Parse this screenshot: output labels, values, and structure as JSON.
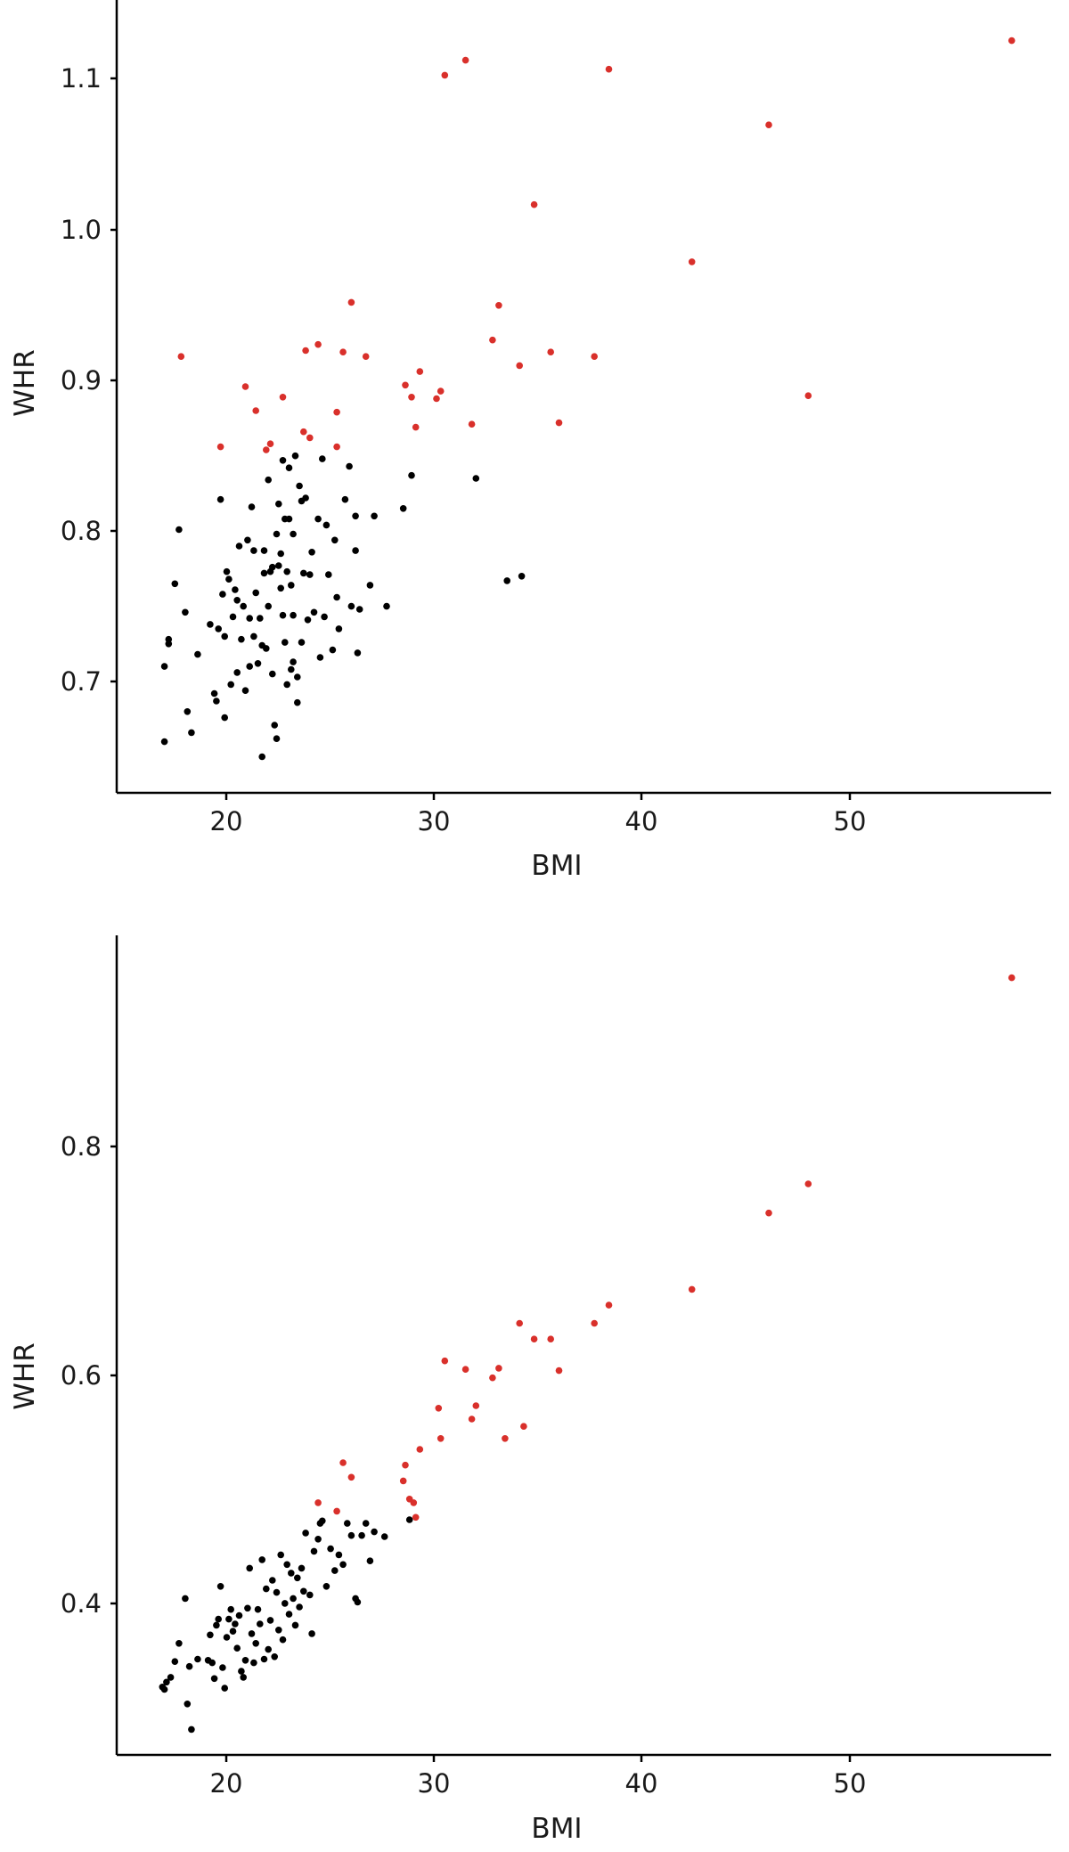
{
  "colors": {
    "normal_point": "#000000",
    "highlight_point": "#d9302b",
    "axis": "#000000",
    "background": "#ffffff"
  },
  "chart_data": [
    {
      "type": "scatter",
      "title": "",
      "xlabel": "BMI",
      "ylabel": "WHR",
      "xlim": [
        14.5,
        59.5
      ],
      "ylim": [
        0.628,
        1.155
      ],
      "xticks": [
        20,
        30,
        40,
        50
      ],
      "yticks": [
        0.7,
        0.8,
        0.9,
        1.0,
        1.1
      ],
      "xtick_labels": [
        "20",
        "30",
        "40",
        "50"
      ],
      "ytick_labels": [
        "0.7",
        "0.8",
        "0.9",
        "1.0",
        "1.1"
      ],
      "legend": "none",
      "grid": false,
      "series": [
        {
          "color": "#000000",
          "points": [
            [
              16.8,
              0.662
            ],
            [
              16.8,
              0.712
            ],
            [
              17.0,
              0.727
            ],
            [
              17.0,
              0.73
            ],
            [
              17.3,
              0.767
            ],
            [
              17.5,
              0.803
            ],
            [
              17.8,
              0.748
            ],
            [
              17.9,
              0.682
            ],
            [
              18.1,
              0.668
            ],
            [
              18.4,
              0.72
            ],
            [
              19.0,
              0.74
            ],
            [
              19.2,
              0.694
            ],
            [
              19.3,
              0.689
            ],
            [
              19.4,
              0.737
            ],
            [
              19.5,
              0.823
            ],
            [
              19.6,
              0.76
            ],
            [
              19.7,
              0.678
            ],
            [
              19.7,
              0.732
            ],
            [
              19.8,
              0.775
            ],
            [
              19.9,
              0.77
            ],
            [
              20.0,
              0.7
            ],
            [
              20.1,
              0.745
            ],
            [
              20.2,
              0.763
            ],
            [
              20.3,
              0.756
            ],
            [
              20.3,
              0.708
            ],
            [
              20.4,
              0.792
            ],
            [
              20.5,
              0.73
            ],
            [
              20.6,
              0.752
            ],
            [
              20.7,
              0.696
            ],
            [
              20.8,
              0.796
            ],
            [
              20.9,
              0.744
            ],
            [
              20.9,
              0.712
            ],
            [
              21.0,
              0.818
            ],
            [
              21.1,
              0.789
            ],
            [
              21.1,
              0.732
            ],
            [
              21.2,
              0.761
            ],
            [
              21.3,
              0.714
            ],
            [
              21.4,
              0.744
            ],
            [
              21.5,
              0.726
            ],
            [
              21.5,
              0.652
            ],
            [
              21.6,
              0.789
            ],
            [
              21.6,
              0.774
            ],
            [
              21.7,
              0.724
            ],
            [
              21.8,
              0.836
            ],
            [
              21.8,
              0.752
            ],
            [
              21.9,
              0.775
            ],
            [
              22.0,
              0.778
            ],
            [
              22.0,
              0.707
            ],
            [
              22.1,
              0.673
            ],
            [
              22.2,
              0.8
            ],
            [
              22.2,
              0.664
            ],
            [
              22.3,
              0.779
            ],
            [
              22.3,
              0.82
            ],
            [
              22.4,
              0.764
            ],
            [
              22.4,
              0.787
            ],
            [
              22.5,
              0.849
            ],
            [
              22.5,
              0.746
            ],
            [
              22.6,
              0.728
            ],
            [
              22.6,
              0.81
            ],
            [
              22.7,
              0.775
            ],
            [
              22.7,
              0.7
            ],
            [
              22.8,
              0.844
            ],
            [
              22.8,
              0.81
            ],
            [
              22.9,
              0.766
            ],
            [
              22.9,
              0.71
            ],
            [
              23.0,
              0.8
            ],
            [
              23.0,
              0.746
            ],
            [
              23.0,
              0.715
            ],
            [
              23.1,
              0.852
            ],
            [
              23.2,
              0.688
            ],
            [
              23.2,
              0.705
            ],
            [
              23.3,
              0.832
            ],
            [
              23.4,
              0.822
            ],
            [
              23.4,
              0.728
            ],
            [
              23.5,
              0.774
            ],
            [
              23.6,
              0.824
            ],
            [
              23.7,
              0.743
            ],
            [
              23.8,
              0.773
            ],
            [
              23.9,
              0.788
            ],
            [
              24.0,
              0.748
            ],
            [
              24.2,
              0.81
            ],
            [
              24.3,
              0.718
            ],
            [
              24.4,
              0.85
            ],
            [
              24.5,
              0.745
            ],
            [
              24.6,
              0.806
            ],
            [
              24.7,
              0.773
            ],
            [
              24.9,
              0.723
            ],
            [
              25.0,
              0.796
            ],
            [
              25.1,
              0.758
            ],
            [
              25.2,
              0.737
            ],
            [
              25.5,
              0.823
            ],
            [
              25.7,
              0.845
            ],
            [
              25.8,
              0.752
            ],
            [
              26.0,
              0.812
            ],
            [
              26.0,
              0.789
            ],
            [
              26.1,
              0.721
            ],
            [
              26.2,
              0.75
            ],
            [
              26.7,
              0.766
            ],
            [
              26.9,
              0.812
            ],
            [
              27.5,
              0.752
            ],
            [
              28.3,
              0.817
            ],
            [
              28.7,
              0.839
            ],
            [
              31.8,
              0.837
            ],
            [
              33.3,
              0.769
            ],
            [
              34.0,
              0.772
            ]
          ]
        },
        {
          "color": "#d9302b",
          "points": [
            [
              17.6,
              0.918
            ],
            [
              19.5,
              0.858
            ],
            [
              20.7,
              0.898
            ],
            [
              21.2,
              0.882
            ],
            [
              21.7,
              0.856
            ],
            [
              21.9,
              0.86
            ],
            [
              22.5,
              0.891
            ],
            [
              23.5,
              0.868
            ],
            [
              23.6,
              0.922
            ],
            [
              23.8,
              0.864
            ],
            [
              24.2,
              0.926
            ],
            [
              25.1,
              0.881
            ],
            [
              25.1,
              0.858
            ],
            [
              25.4,
              0.921
            ],
            [
              25.8,
              0.954
            ],
            [
              26.5,
              0.918
            ],
            [
              28.4,
              0.899
            ],
            [
              28.7,
              0.891
            ],
            [
              28.9,
              0.871
            ],
            [
              29.1,
              0.908
            ],
            [
              29.9,
              0.89
            ],
            [
              30.1,
              0.895
            ],
            [
              30.3,
              1.105
            ],
            [
              31.3,
              1.115
            ],
            [
              31.6,
              0.873
            ],
            [
              32.6,
              0.929
            ],
            [
              32.9,
              0.952
            ],
            [
              33.9,
              0.912
            ],
            [
              34.6,
              1.019
            ],
            [
              35.4,
              0.921
            ],
            [
              35.8,
              0.874
            ],
            [
              37.5,
              0.918
            ],
            [
              38.2,
              1.109
            ],
            [
              42.2,
              0.981
            ],
            [
              45.9,
              1.072
            ],
            [
              47.8,
              0.892
            ],
            [
              57.6,
              1.128
            ]
          ]
        }
      ]
    },
    {
      "type": "scatter",
      "title": "",
      "xlabel": "BMI",
      "ylabel": "WHR",
      "xlim": [
        14.5,
        59.5
      ],
      "ylim": [
        0.306,
        0.982
      ],
      "xticks": [
        20,
        30,
        40,
        50
      ],
      "yticks": [
        0.4,
        0.6,
        0.8
      ],
      "xtick_labels": [
        "20",
        "30",
        "40",
        "50"
      ],
      "ytick_labels": [
        "0.4",
        "0.6",
        "0.8"
      ],
      "legend": "none",
      "grid": false,
      "series": [
        {
          "color": "#000000",
          "points": [
            [
              16.7,
              0.362
            ],
            [
              16.8,
              0.36
            ],
            [
              16.9,
              0.366
            ],
            [
              17.1,
              0.37
            ],
            [
              17.3,
              0.383
            ],
            [
              17.5,
              0.398
            ],
            [
              17.8,
              0.435
            ],
            [
              17.9,
              0.348
            ],
            [
              18.0,
              0.379
            ],
            [
              18.1,
              0.327
            ],
            [
              18.4,
              0.385
            ],
            [
              18.9,
              0.384
            ],
            [
              19.0,
              0.405
            ],
            [
              19.1,
              0.382
            ],
            [
              19.2,
              0.369
            ],
            [
              19.3,
              0.413
            ],
            [
              19.4,
              0.418
            ],
            [
              19.5,
              0.445
            ],
            [
              19.6,
              0.378
            ],
            [
              19.7,
              0.361
            ],
            [
              19.8,
              0.403
            ],
            [
              19.9,
              0.418
            ],
            [
              20.0,
              0.426
            ],
            [
              20.1,
              0.408
            ],
            [
              20.2,
              0.414
            ],
            [
              20.3,
              0.394
            ],
            [
              20.4,
              0.421
            ],
            [
              20.5,
              0.375
            ],
            [
              20.6,
              0.37
            ],
            [
              20.7,
              0.384
            ],
            [
              20.8,
              0.427
            ],
            [
              20.9,
              0.46
            ],
            [
              21.0,
              0.406
            ],
            [
              21.1,
              0.382
            ],
            [
              21.2,
              0.398
            ],
            [
              21.3,
              0.426
            ],
            [
              21.4,
              0.414
            ],
            [
              21.5,
              0.467
            ],
            [
              21.6,
              0.385
            ],
            [
              21.7,
              0.443
            ],
            [
              21.8,
              0.393
            ],
            [
              21.9,
              0.417
            ],
            [
              22.0,
              0.45
            ],
            [
              22.1,
              0.387
            ],
            [
              22.2,
              0.44
            ],
            [
              22.3,
              0.409
            ],
            [
              22.4,
              0.471
            ],
            [
              22.5,
              0.401
            ],
            [
              22.6,
              0.431
            ],
            [
              22.7,
              0.463
            ],
            [
              22.8,
              0.422
            ],
            [
              22.9,
              0.456
            ],
            [
              23.0,
              0.435
            ],
            [
              23.1,
              0.413
            ],
            [
              23.2,
              0.452
            ],
            [
              23.3,
              0.428
            ],
            [
              23.4,
              0.46
            ],
            [
              23.5,
              0.441
            ],
            [
              23.6,
              0.489
            ],
            [
              23.8,
              0.438
            ],
            [
              23.9,
              0.406
            ],
            [
              24.0,
              0.474
            ],
            [
              24.2,
              0.484
            ],
            [
              24.3,
              0.497
            ],
            [
              24.4,
              0.499
            ],
            [
              24.6,
              0.445
            ],
            [
              24.8,
              0.476
            ],
            [
              25.0,
              0.458
            ],
            [
              25.2,
              0.471
            ],
            [
              25.4,
              0.463
            ],
            [
              25.6,
              0.497
            ],
            [
              25.8,
              0.487
            ],
            [
              26.0,
              0.435
            ],
            [
              26.1,
              0.432
            ],
            [
              26.3,
              0.487
            ],
            [
              26.5,
              0.497
            ],
            [
              26.7,
              0.466
            ],
            [
              26.9,
              0.49
            ],
            [
              27.4,
              0.486
            ],
            [
              28.6,
              0.5
            ]
          ]
        },
        {
          "color": "#d9302b",
          "points": [
            [
              24.2,
              0.514
            ],
            [
              25.1,
              0.507
            ],
            [
              25.4,
              0.547
            ],
            [
              25.8,
              0.535
            ],
            [
              28.3,
              0.532
            ],
            [
              28.4,
              0.545
            ],
            [
              28.6,
              0.517
            ],
            [
              28.8,
              0.514
            ],
            [
              28.9,
              0.502
            ],
            [
              29.1,
              0.558
            ],
            [
              30.0,
              0.592
            ],
            [
              30.1,
              0.567
            ],
            [
              30.3,
              0.631
            ],
            [
              31.3,
              0.624
            ],
            [
              31.6,
              0.583
            ],
            [
              31.8,
              0.594
            ],
            [
              32.6,
              0.617
            ],
            [
              32.9,
              0.625
            ],
            [
              33.2,
              0.567
            ],
            [
              33.9,
              0.662
            ],
            [
              34.1,
              0.577
            ],
            [
              34.6,
              0.649
            ],
            [
              35.4,
              0.649
            ],
            [
              35.8,
              0.623
            ],
            [
              37.5,
              0.662
            ],
            [
              38.2,
              0.677
            ],
            [
              42.2,
              0.69
            ],
            [
              45.9,
              0.753
            ],
            [
              47.8,
              0.777
            ],
            [
              57.6,
              0.947
            ]
          ]
        }
      ]
    }
  ]
}
